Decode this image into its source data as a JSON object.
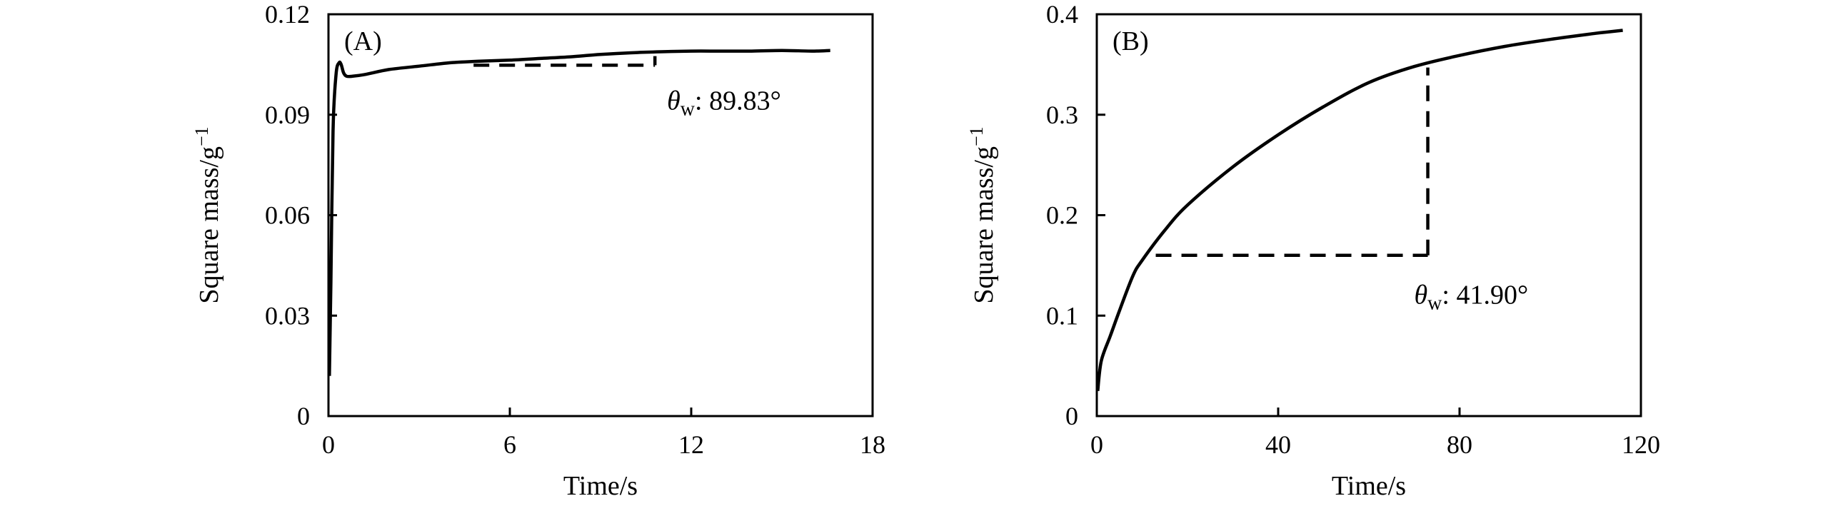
{
  "chart_data": [
    {
      "type": "line",
      "panel_label": "(A)",
      "xlabel": "Time/s",
      "ylabel": "Square mass/g",
      "ylabel_sup": "−1",
      "xlim": [
        0,
        18
      ],
      "ylim": [
        0,
        0.12
      ],
      "xticks": [
        0,
        6,
        12,
        18
      ],
      "yticks": [
        0,
        0.03,
        0.06,
        0.09,
        0.12
      ],
      "xtick_labels": [
        "0",
        "6",
        "12",
        "18"
      ],
      "ytick_labels": [
        "0",
        "0.03",
        "0.06",
        "0.09",
        "0.12"
      ],
      "grid": false,
      "series": [
        {
          "x": [
            0.03,
            0.08,
            0.15,
            0.25,
            0.35,
            0.42,
            0.5,
            0.6,
            0.8,
            1.2,
            2,
            3,
            4,
            5,
            6,
            7,
            8,
            9,
            10,
            11,
            12,
            13,
            14,
            15,
            16,
            16.6
          ],
          "y": [
            0.012,
            0.04,
            0.085,
            0.102,
            0.1055,
            0.105,
            0.1025,
            0.1015,
            0.1015,
            0.102,
            0.1035,
            0.1045,
            0.1055,
            0.106,
            0.1063,
            0.1068,
            0.1073,
            0.108,
            0.1085,
            0.1088,
            0.109,
            0.109,
            0.109,
            0.1092,
            0.109,
            0.1092
          ]
        }
      ],
      "annotation_line": {
        "x": [
          4.8,
          10.8
        ],
        "y": [
          0.1048,
          0.1048
        ],
        "x_end_top": 0.1075,
        "style": "dashed"
      },
      "annotation": {
        "symbol": "θ",
        "sub": "w",
        "text": ": 89.83°",
        "x": 11.2,
        "y": 0.0915
      }
    },
    {
      "type": "line",
      "panel_label": "(B)",
      "xlabel": "Time/s",
      "ylabel": "Square mass/g",
      "ylabel_sup": "−1",
      "xlim": [
        0,
        120
      ],
      "ylim": [
        0,
        0.4
      ],
      "xticks": [
        0,
        40,
        80,
        120
      ],
      "yticks": [
        0,
        0.1,
        0.2,
        0.3,
        0.4
      ],
      "xtick_labels": [
        "0",
        "40",
        "80",
        "120"
      ],
      "ytick_labels": [
        "0",
        "0.1",
        "0.2",
        "0.3",
        "0.4"
      ],
      "grid": false,
      "series": [
        {
          "x": [
            0.2,
            1,
            3,
            5,
            8,
            10,
            15,
            20,
            30,
            40,
            50,
            60,
            70,
            80,
            90,
            100,
            110,
            116
          ],
          "y": [
            0.025,
            0.055,
            0.08,
            0.105,
            0.14,
            0.155,
            0.185,
            0.21,
            0.248,
            0.28,
            0.308,
            0.332,
            0.348,
            0.359,
            0.368,
            0.375,
            0.381,
            0.384
          ]
        }
      ],
      "annotation_line": {
        "x": [
          13,
          73
        ],
        "y": [
          0.16,
          0.16
        ],
        "x_end_top": 0.347,
        "style": "dashed"
      },
      "annotation": {
        "symbol": "θ",
        "sub": "w",
        "text": ": 41.90°",
        "x": 70,
        "y": 0.112
      }
    }
  ]
}
